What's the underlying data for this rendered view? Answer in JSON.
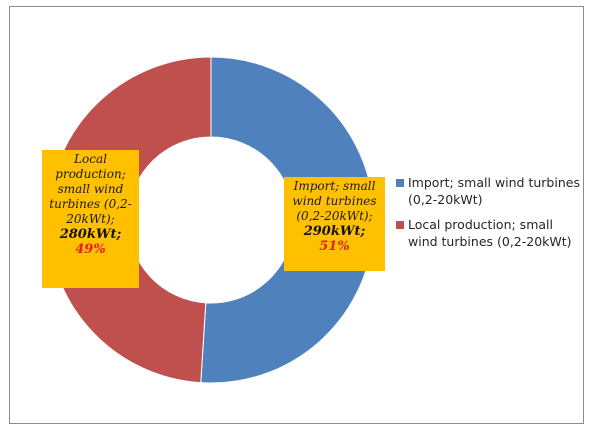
{
  "chart_data": {
    "type": "donut",
    "title": "",
    "series": [
      {
        "values": [
          51,
          49
        ],
        "kw": [
          290,
          280
        ]
      }
    ],
    "categories": [
      "Import; small wind turbines (0,2-20kWt)",
      "Local production; small wind turbines (0,2-20kWt)"
    ],
    "colors": [
      "#4f81bd",
      "#c0504d"
    ],
    "data_labels": [
      {
        "text_lines": [
          "Import; small",
          "wind turbines",
          "(0,2-20kWt);"
        ],
        "value": "290kWt;",
        "percent": "51%"
      },
      {
        "text_lines": [
          "Local",
          "production;",
          "small wind",
          "turbines (0,2-",
          "20kWt);"
        ],
        "value": "280kWt;",
        "percent": "49%"
      }
    ],
    "legend_position": "right",
    "legend": [
      {
        "label": "Import; small wind turbines (0,2-20kWt)",
        "color": "#4f81bd"
      },
      {
        "label": "Local production; small wind turbines (0,2-20kWt)",
        "color": "#c0504d"
      }
    ]
  }
}
